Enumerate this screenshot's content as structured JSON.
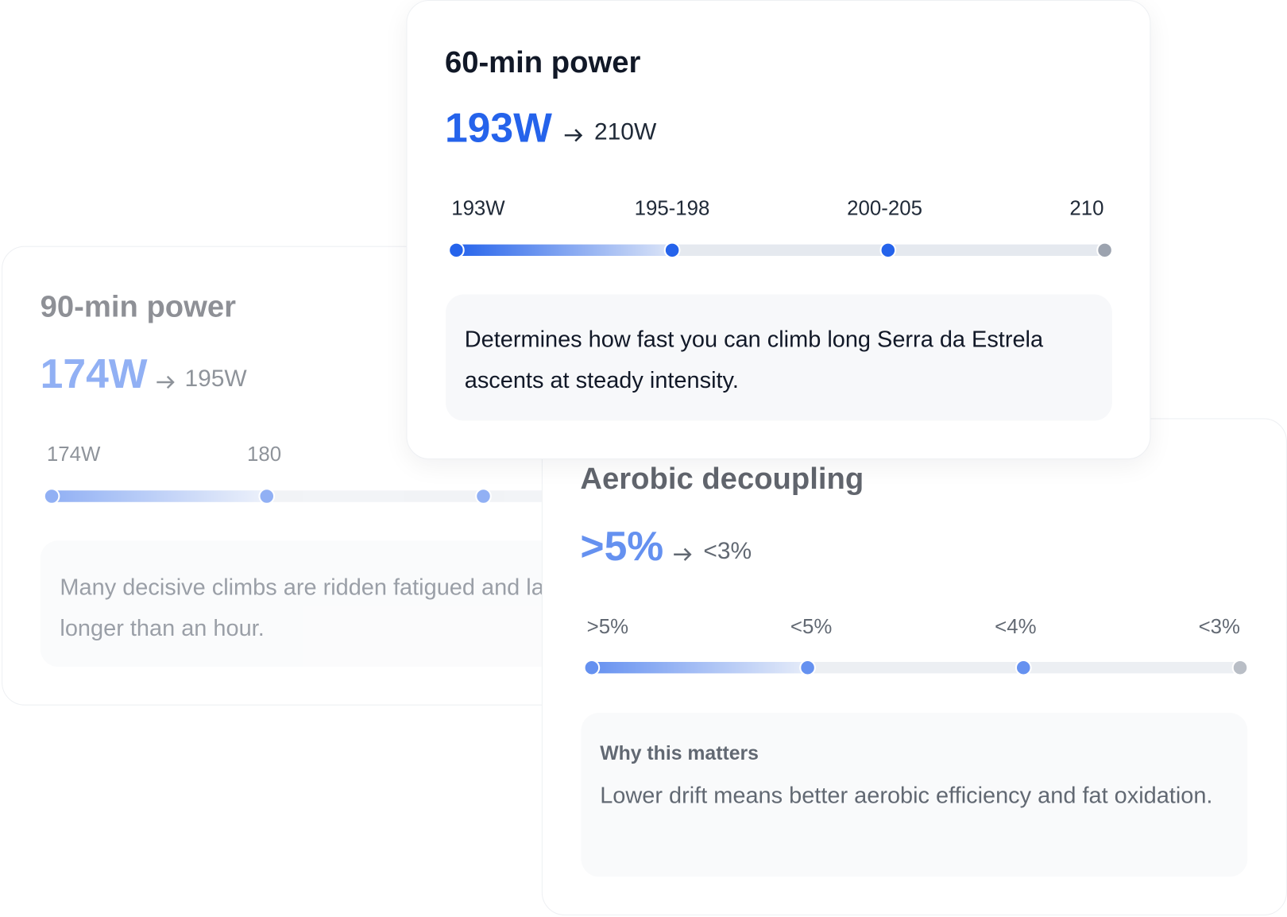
{
  "cards": [
    {
      "title": "90-min power",
      "current": "174W",
      "target": "195W",
      "scale": [
        "174W",
        "180"
      ],
      "description": "Many decisive climbs are ridden fatigued and last longer than an hour."
    },
    {
      "title": "Aerobic decoupling",
      "current": ">5%",
      "target": "<3%",
      "scale": [
        ">5%",
        "<5%",
        "<4%",
        "<3%"
      ],
      "note_heading": "Why this matters",
      "description": "Lower drift means better aerobic efficiency and fat oxidation."
    },
    {
      "title": "60-min power",
      "current": "193W",
      "target": "210W",
      "scale": [
        "193W",
        "195-198",
        "200-205",
        "210"
      ],
      "description": "Determines how fast you can climb long Serra da Estrela ascents at steady intensity."
    }
  ]
}
